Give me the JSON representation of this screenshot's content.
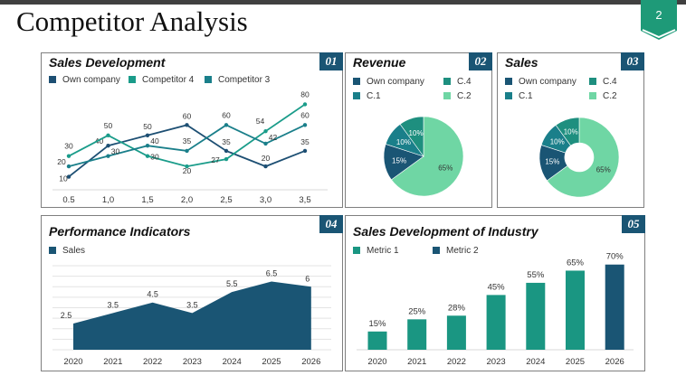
{
  "header": {
    "title": "Competitor Analysis",
    "page_number": "2"
  },
  "colors": {
    "navy": "#1a5574",
    "dark_navy": "#1d4f73",
    "teal": "#1a7f8a",
    "green_teal": "#1a9c8a",
    "mint": "#6fd6a4",
    "sea": "#1e8f7f"
  },
  "panels": {
    "p1": {
      "title": "Sales Development",
      "num": "01",
      "legend": [
        "Own company",
        "Competitor 4",
        "Competitor 3"
      ]
    },
    "p2": {
      "title": "Revenue",
      "num": "02",
      "legend": [
        "Own company",
        "C.4",
        "C.1",
        "C.2"
      ]
    },
    "p3": {
      "title": "Sales",
      "num": "03",
      "legend": [
        "Own company",
        "C.4",
        "C.1",
        "C.2"
      ]
    },
    "p4": {
      "title": "Performance Indicators",
      "num": "04",
      "legend": [
        "Sales"
      ]
    },
    "p5": {
      "title": "Sales Development of Industry",
      "num": "05",
      "legend": [
        "Metric 1",
        "Metric 2"
      ]
    }
  },
  "chart_data": [
    {
      "type": "line",
      "title": "Sales Development",
      "categories": [
        "0.5",
        "1,0",
        "1,5",
        "2,0",
        "2,5",
        "3,0",
        "3,5"
      ],
      "series": [
        {
          "name": "Own company",
          "values": [
            10,
            40,
            50,
            60,
            35,
            20,
            35
          ],
          "color": "#1d4f73"
        },
        {
          "name": "Competitor 4",
          "values": [
            30,
            50,
            30,
            20,
            27,
            54,
            80
          ],
          "color": "#1a9c8a"
        },
        {
          "name": "Competitor 3",
          "values": [
            20,
            30,
            40,
            35,
            60,
            42,
            60
          ],
          "color": "#1a7f8a"
        }
      ],
      "ylim": [
        0,
        90
      ],
      "legend": "top-left"
    },
    {
      "type": "pie",
      "title": "Revenue",
      "slices": [
        {
          "name": "C.2",
          "value": 65,
          "label": "65%",
          "color": "#6fd6a4"
        },
        {
          "name": "Own company",
          "value": 15,
          "label": "15%",
          "color": "#1a5574"
        },
        {
          "name": "C.1",
          "value": 10,
          "label": "10%",
          "color": "#1a7f8a"
        },
        {
          "name": "C.4",
          "value": 10,
          "label": "10%",
          "color": "#1e8f7f"
        }
      ]
    },
    {
      "type": "pie",
      "title": "Sales",
      "donut": true,
      "slices": [
        {
          "name": "C.2",
          "value": 65,
          "label": "65%",
          "color": "#6fd6a4"
        },
        {
          "name": "Own company",
          "value": 15,
          "label": "15%",
          "color": "#1a5574"
        },
        {
          "name": "C.1",
          "value": 10,
          "label": "10%",
          "color": "#1a7f8a"
        },
        {
          "name": "C.4",
          "value": 10,
          "label": "10%",
          "color": "#1e8f7f"
        }
      ]
    },
    {
      "type": "area",
      "title": "Performance Indicators",
      "categories": [
        "2020",
        "2021",
        "2022",
        "2023",
        "2024",
        "2025",
        "2026"
      ],
      "series": [
        {
          "name": "Sales",
          "values": [
            2.5,
            3.5,
            4.5,
            3.5,
            5.5,
            6.5,
            6
          ],
          "color": "#1a5574"
        }
      ],
      "ylim": [
        0,
        8
      ],
      "grid": true
    },
    {
      "type": "bar",
      "title": "Sales Development of Industry",
      "categories": [
        "2020",
        "2021",
        "2022",
        "2023",
        "2024",
        "2025",
        "2026"
      ],
      "values": [
        15,
        25,
        28,
        45,
        55,
        65,
        70
      ],
      "labels": [
        "15%",
        "25%",
        "28%",
        "45%",
        "55%",
        "65%",
        "70%"
      ],
      "series_of_bar": [
        "Metric 1",
        "Metric 1",
        "Metric 1",
        "Metric 1",
        "Metric 1",
        "Metric 1",
        "Metric 2"
      ],
      "series_colors": {
        "Metric 1": "#1a9682",
        "Metric 2": "#1a5574"
      },
      "ylim": [
        0,
        75
      ]
    }
  ]
}
